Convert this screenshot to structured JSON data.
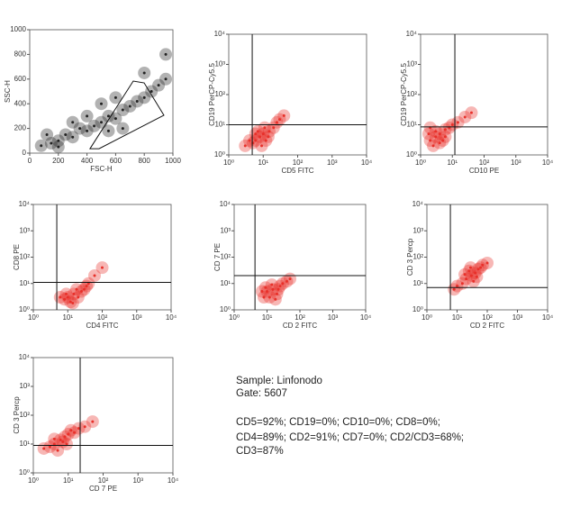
{
  "chart_data": [
    {
      "type": "scatter",
      "x_label": "FSC-H",
      "y_label": "SSC-H",
      "color": "#222222",
      "log_scale": false,
      "xlim": [
        0,
        1000
      ],
      "ylim": [
        0,
        1000
      ],
      "xticks": [
        0,
        200,
        400,
        600,
        800,
        1000
      ],
      "yticks": [
        0,
        200,
        400,
        600,
        800,
        1000
      ],
      "x": [
        80,
        150,
        200,
        250,
        300,
        350,
        400,
        450,
        500,
        550,
        600,
        650,
        700,
        750,
        800,
        850,
        900,
        950,
        300,
        500,
        650,
        200,
        800,
        400,
        600,
        120,
        950,
        550
      ],
      "y": [
        60,
        80,
        100,
        150,
        130,
        200,
        180,
        220,
        250,
        300,
        280,
        350,
        380,
        420,
        450,
        500,
        550,
        600,
        250,
        400,
        200,
        50,
        650,
        300,
        450,
        150,
        800,
        180
      ],
      "gate": {
        "x": [
          421,
          723,
          799,
          937,
          484
        ],
        "y": [
          36,
          584,
          569,
          307,
          36
        ]
      }
    },
    {
      "type": "scatter",
      "x_label": "CD5 FITC",
      "y_label": "CD19 PerCP-Cy5.5",
      "color": "#e8312a",
      "log_scale": true,
      "xlim": [
        1,
        10000
      ],
      "ylim": [
        1,
        10000
      ],
      "xticks": [
        {
          "value": 1,
          "label": "10⁰"
        },
        {
          "value": 10,
          "label": "10¹"
        },
        {
          "value": 100,
          "label": "10²"
        },
        {
          "value": 1000,
          "label": "10³"
        },
        {
          "value": 10000,
          "label": "10⁴"
        }
      ],
      "yticks": [
        {
          "value": 1,
          "label": "10⁰"
        },
        {
          "value": 10,
          "label": "10¹"
        },
        {
          "value": 100,
          "label": "10²"
        },
        {
          "value": 1000,
          "label": "10³"
        },
        {
          "value": 10000,
          "label": "10⁴"
        }
      ],
      "x": [
        6,
        8,
        10,
        5,
        12,
        7,
        15,
        20,
        4,
        9,
        25,
        30,
        11,
        6,
        14,
        40,
        3
      ],
      "y": [
        3,
        4,
        5,
        2.5,
        3,
        6,
        6,
        8,
        3,
        2,
        12,
        15,
        8,
        5,
        4,
        20,
        2
      ],
      "quadrant_x": 4.8,
      "quadrant_y": 10
    },
    {
      "type": "scatter",
      "x_label": "CD10 PE",
      "y_label": "CD19 PerCP-Cy5.5",
      "color": "#e8312a",
      "log_scale": true,
      "xlim": [
        1,
        10000
      ],
      "ylim": [
        1,
        10000
      ],
      "xticks": [
        {
          "value": 1,
          "label": "10⁰"
        },
        {
          "value": 10,
          "label": "10¹"
        },
        {
          "value": 100,
          "label": "10²"
        },
        {
          "value": 1000,
          "label": "10³"
        },
        {
          "value": 10000,
          "label": "10⁴"
        }
      ],
      "yticks": [
        {
          "value": 1,
          "label": "10⁰"
        },
        {
          "value": 10,
          "label": "10¹"
        },
        {
          "value": 100,
          "label": "10²"
        },
        {
          "value": 1000,
          "label": "10³"
        },
        {
          "value": 10000,
          "label": "10⁴"
        }
      ],
      "x": [
        2,
        3,
        4,
        2.5,
        5,
        3,
        6,
        8,
        1.8,
        4,
        10,
        15,
        25,
        40,
        2,
        6
      ],
      "y": [
        3,
        4,
        5,
        2,
        3,
        6,
        7,
        8,
        5,
        2.5,
        10,
        12,
        18,
        25,
        8,
        4
      ],
      "quadrant_x": 12,
      "quadrant_y": 8.5
    },
    {
      "type": "scatter",
      "x_label": "CD4 FITC",
      "y_label": "CD8 PE",
      "color": "#e8312a",
      "log_scale": true,
      "xlim": [
        1,
        10000
      ],
      "ylim": [
        1,
        10000
      ],
      "xticks": [
        {
          "value": 1,
          "label": "10⁰"
        },
        {
          "value": 10,
          "label": "10¹"
        },
        {
          "value": 100,
          "label": "10²"
        },
        {
          "value": 1000,
          "label": "10³"
        },
        {
          "value": 10000,
          "label": "10⁴"
        }
      ],
      "yticks": [
        {
          "value": 1,
          "label": "10⁰"
        },
        {
          "value": 10,
          "label": "10¹"
        },
        {
          "value": 100,
          "label": "10²"
        },
        {
          "value": 1000,
          "label": "10³"
        },
        {
          "value": 10000,
          "label": "10⁴"
        }
      ],
      "x": [
        10,
        15,
        20,
        8,
        25,
        12,
        30,
        40,
        60,
        6,
        18,
        9,
        100,
        14,
        35
      ],
      "y": [
        3,
        4,
        3,
        2.5,
        5,
        2,
        6,
        10,
        20,
        3,
        6,
        4,
        40,
        1.8,
        8
      ],
      "quadrant_x": 4.8,
      "quadrant_y": 11
    },
    {
      "type": "scatter",
      "x_label": "CD 2 FITC",
      "y_label": "CD 7 PE",
      "color": "#e8312a",
      "log_scale": true,
      "xlim": [
        1,
        10000
      ],
      "ylim": [
        1,
        10000
      ],
      "xticks": [
        {
          "value": 1,
          "label": "10⁰"
        },
        {
          "value": 10,
          "label": "10¹"
        },
        {
          "value": 100,
          "label": "10²"
        },
        {
          "value": 1000,
          "label": "10³"
        },
        {
          "value": 10000,
          "label": "10⁴"
        }
      ],
      "yticks": [
        {
          "value": 1,
          "label": "10⁰"
        },
        {
          "value": 10,
          "label": "10¹"
        },
        {
          "value": 100,
          "label": "10²"
        },
        {
          "value": 1000,
          "label": "10³"
        },
        {
          "value": 10000,
          "label": "10⁴"
        }
      ],
      "x": [
        10,
        15,
        20,
        8,
        25,
        12,
        30,
        7,
        18,
        40,
        9,
        22,
        50,
        14
      ],
      "y": [
        5,
        6,
        4,
        3,
        8,
        3,
        10,
        5,
        2.5,
        12,
        7,
        6,
        15,
        9
      ],
      "quadrant_x": 4.3,
      "quadrant_y": 20
    },
    {
      "type": "scatter",
      "x_label": "CD 2 FITC",
      "y_label": "CD 3 Percp",
      "color": "#e8312a",
      "log_scale": true,
      "xlim": [
        1,
        10000
      ],
      "ylim": [
        1,
        10000
      ],
      "xticks": [
        {
          "value": 1,
          "label": "10⁰"
        },
        {
          "value": 10,
          "label": "10¹"
        },
        {
          "value": 100,
          "label": "10²"
        },
        {
          "value": 1000,
          "label": "10³"
        },
        {
          "value": 10000,
          "label": "10⁴"
        }
      ],
      "yticks": [
        {
          "value": 1,
          "label": "10⁰"
        },
        {
          "value": 10,
          "label": "10¹"
        },
        {
          "value": 100,
          "label": "10²"
        },
        {
          "value": 1000,
          "label": "10³"
        },
        {
          "value": 10000,
          "label": "10⁴"
        }
      ],
      "x": [
        20,
        30,
        40,
        25,
        50,
        15,
        35,
        60,
        18,
        45,
        10,
        70,
        28,
        8,
        100
      ],
      "y": [
        15,
        20,
        25,
        30,
        35,
        10,
        12,
        40,
        22,
        18,
        8,
        50,
        40,
        6,
        60
      ],
      "quadrant_x": 6,
      "quadrant_y": 7
    },
    {
      "type": "scatter",
      "x_label": "CD 7 PE",
      "y_label": "CD 3 Percp",
      "color": "#e8312a",
      "log_scale": true,
      "xlim": [
        1,
        10000
      ],
      "ylim": [
        1,
        10000
      ],
      "xticks": [
        {
          "value": 1,
          "label": "10⁰"
        },
        {
          "value": 10,
          "label": "10¹"
        },
        {
          "value": 100,
          "label": "10²"
        },
        {
          "value": 1000,
          "label": "10³"
        },
        {
          "value": 10000,
          "label": "10⁴"
        }
      ],
      "yticks": [
        {
          "value": 1,
          "label": "10⁰"
        },
        {
          "value": 10,
          "label": "10¹"
        },
        {
          "value": 100,
          "label": "10²"
        },
        {
          "value": 1000,
          "label": "10³"
        },
        {
          "value": 10000,
          "label": "10⁴"
        }
      ],
      "x": [
        4,
        6,
        8,
        3,
        10,
        5,
        12,
        7,
        2,
        15,
        4,
        20,
        30,
        9,
        50
      ],
      "y": [
        10,
        14,
        18,
        8,
        22,
        6,
        30,
        12,
        7,
        25,
        15,
        35,
        40,
        10,
        60
      ],
      "quadrant_x": 22,
      "quadrant_y": 9
    }
  ],
  "text": {
    "lines": [
      "Sample:  Linfonodo",
      "Gate:  5607",
      "CD5=92%; CD19=0%; CD10=0%; CD8=0%;",
      "CD4=89%; CD2=91%; CD7=0%; CD2/CD3=68%;",
      "CD3=87%"
    ]
  }
}
